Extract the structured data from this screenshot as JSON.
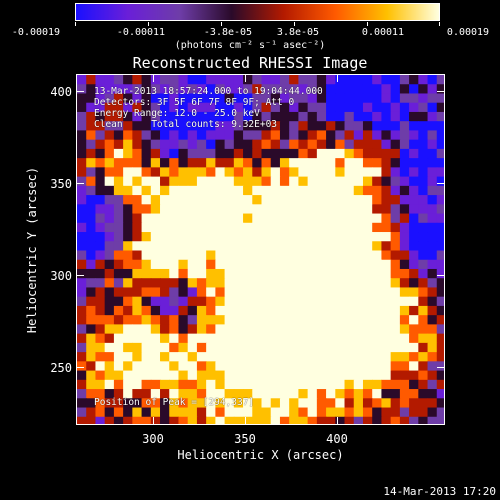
{
  "colorbar": {
    "tick_labels": [
      "-0.00019",
      "-0.00011",
      "-3.8e-05",
      "3.8e-05",
      "0.00011",
      "0.00019"
    ],
    "units": "(photons cm⁻² s⁻¹ asec⁻²)",
    "colors": [
      "#1a10ff",
      "#6a1fd8",
      "#6e3da8",
      "#2a0a2a",
      "#b31a00",
      "#ff5a00",
      "#ffc000",
      "#ffffe0"
    ]
  },
  "image": {
    "title": "Reconstructed RHESSI Image",
    "time_range": "13-Mar-2013 18:57:24.000 to 19:04:44.000",
    "detectors": "Detectors: 3F 5F 6F 7F 8F 9F; Att 0",
    "energy": "Energy Range: 12.0 - 25.0 keV",
    "algorithm": "Clean     Total counts: 9.32E+03",
    "peak": "Position of Peak = [294,337]"
  },
  "axes": {
    "xlabel": "Heliocentric X (arcsec)",
    "ylabel": "Heliocentric Y (arcsec)",
    "x_ticks": [
      "300",
      "350",
      "400"
    ],
    "y_ticks": [
      "400",
      "350",
      "300",
      "250"
    ],
    "x_range": [
      258,
      448
    ],
    "y_range": [
      218,
      408
    ]
  },
  "timestamp": "14-Mar-2013 17:20"
}
